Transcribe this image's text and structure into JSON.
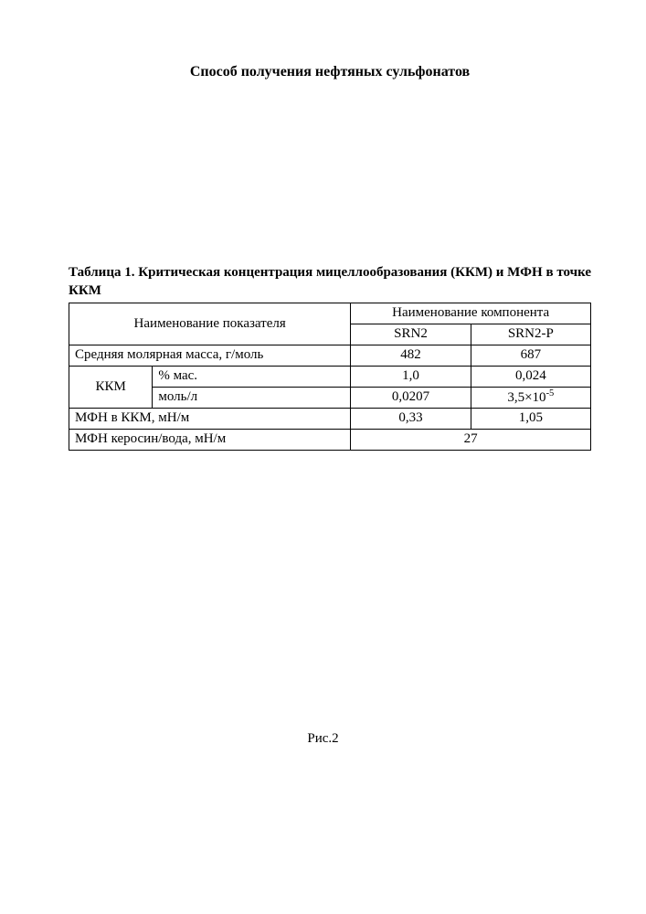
{
  "title": "Способ получения нефтяных сульфонатов",
  "table": {
    "caption": "Таблица 1. Критическая концентрация мицеллообразования (ККМ) и МФН в точке ККМ",
    "header_parameter": "Наименование показателя",
    "header_component": "Наименование компонента",
    "col_srn2": "SRN2",
    "col_srn2p": "SRN2-P",
    "row_mass_label": "Средняя молярная масса, г/моль",
    "row_mass_srn2": "482",
    "row_mass_srn2p": "687",
    "row_kkm_group": "ККМ",
    "row_kkm_mass_label": "% мас.",
    "row_kkm_mass_srn2": "1,0",
    "row_kkm_mass_srn2p": "0,024",
    "row_kkm_mol_label": "моль/л",
    "row_kkm_mol_srn2": "0,0207",
    "row_kkm_mol_srn2p_html": "3,5×10<sup>-5</sup>",
    "row_mfn_kkm_label": "МФН в ККМ, мН/м",
    "row_mfn_kkm_srn2": "0,33",
    "row_mfn_kkm_srn2p": "1,05",
    "row_mfn_kerosene_label": "МФН керосин/вода, мН/м",
    "row_mfn_kerosene_value": "27"
  },
  "figure_label": "Рис.2"
}
